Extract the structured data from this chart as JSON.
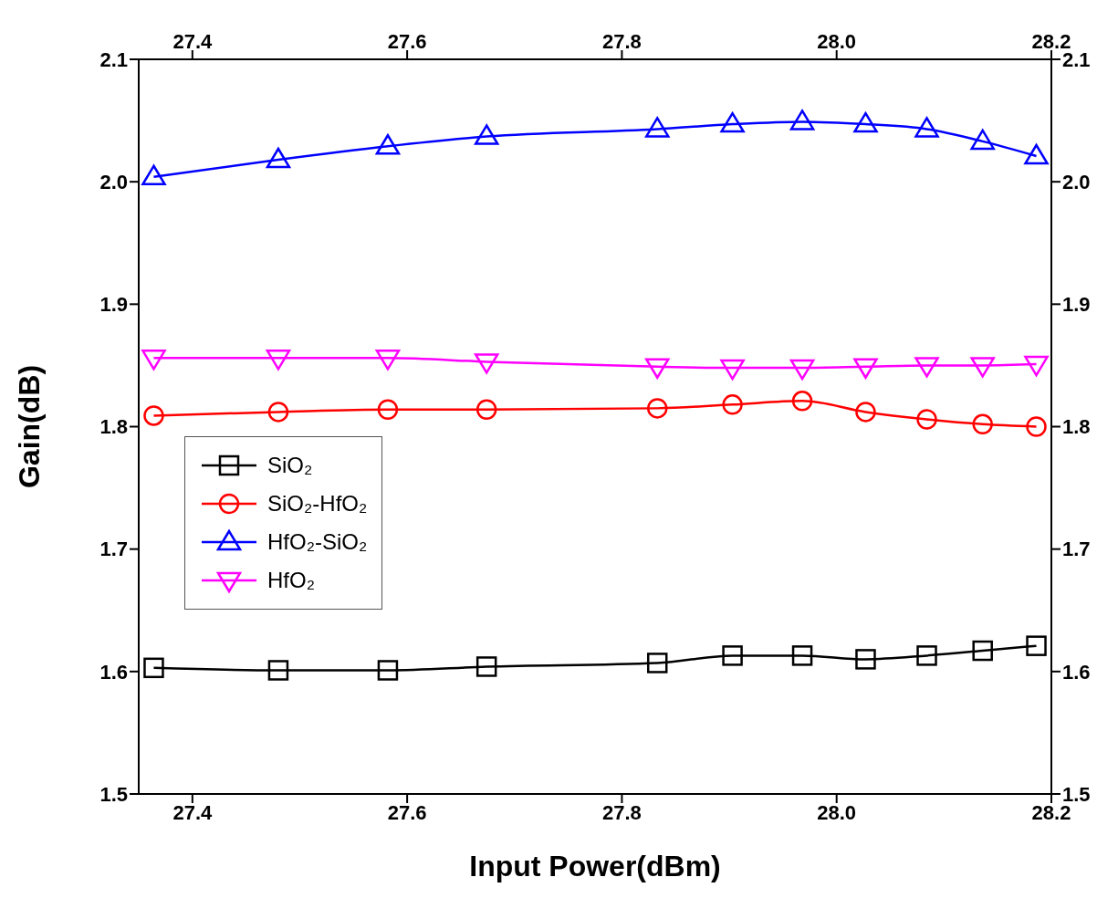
{
  "chart_data": {
    "type": "line",
    "xlabel": "Input Power(dBm)",
    "ylabel": "Gain(dB)",
    "x": [
      27.364,
      27.48,
      27.582,
      27.674,
      27.833,
      27.903,
      27.968,
      28.027,
      28.084,
      28.136,
      28.186
    ],
    "series": [
      {
        "name": "SiO₂",
        "color": "#000000",
        "marker": "square",
        "values": [
          1.603,
          1.601,
          1.601,
          1.604,
          1.607,
          1.613,
          1.613,
          1.61,
          1.613,
          1.617,
          1.621
        ]
      },
      {
        "name": "SiO₂-HfO₂",
        "color": "#ff0000",
        "marker": "circle",
        "values": [
          1.809,
          1.812,
          1.814,
          1.814,
          1.815,
          1.818,
          1.821,
          1.812,
          1.806,
          1.802,
          1.8
        ]
      },
      {
        "name": "HfO₂-SiO₂",
        "color": "#0000ff",
        "marker": "triangle",
        "values": [
          2.004,
          2.018,
          2.029,
          2.037,
          2.043,
          2.047,
          2.049,
          2.047,
          2.043,
          2.033,
          2.021
        ]
      },
      {
        "name": "HfO₂",
        "color": "#ff00ff",
        "marker": "triangle-down",
        "values": [
          1.856,
          1.856,
          1.856,
          1.853,
          1.849,
          1.848,
          1.848,
          1.849,
          1.85,
          1.85,
          1.851
        ]
      }
    ],
    "xlim": [
      27.35,
      28.2
    ],
    "xticks": [
      27.4,
      27.6,
      27.8,
      {
        "value": 28.0,
        "label": "28.0"
      },
      28.2
    ],
    "x2lim": [
      27.35,
      28.2
    ],
    "x2ticks": [
      27.4,
      27.6,
      27.8,
      {
        "value": 28.0,
        "label": "28.0"
      },
      28.2
    ],
    "ylim": [
      1.5,
      2.1
    ],
    "yticks": [
      1.5,
      1.6,
      1.7,
      1.8,
      1.9,
      {
        "value": 2.0,
        "label": "2.0"
      },
      2.1
    ],
    "y2lim": [
      1.5,
      2.1
    ],
    "y2ticks": [
      1.5,
      1.6,
      1.7,
      1.8,
      1.9,
      {
        "value": 2.0,
        "label": "2.0"
      },
      2.1
    ],
    "legend": "bottom left",
    "grid": false,
    "line_style": "solid"
  }
}
